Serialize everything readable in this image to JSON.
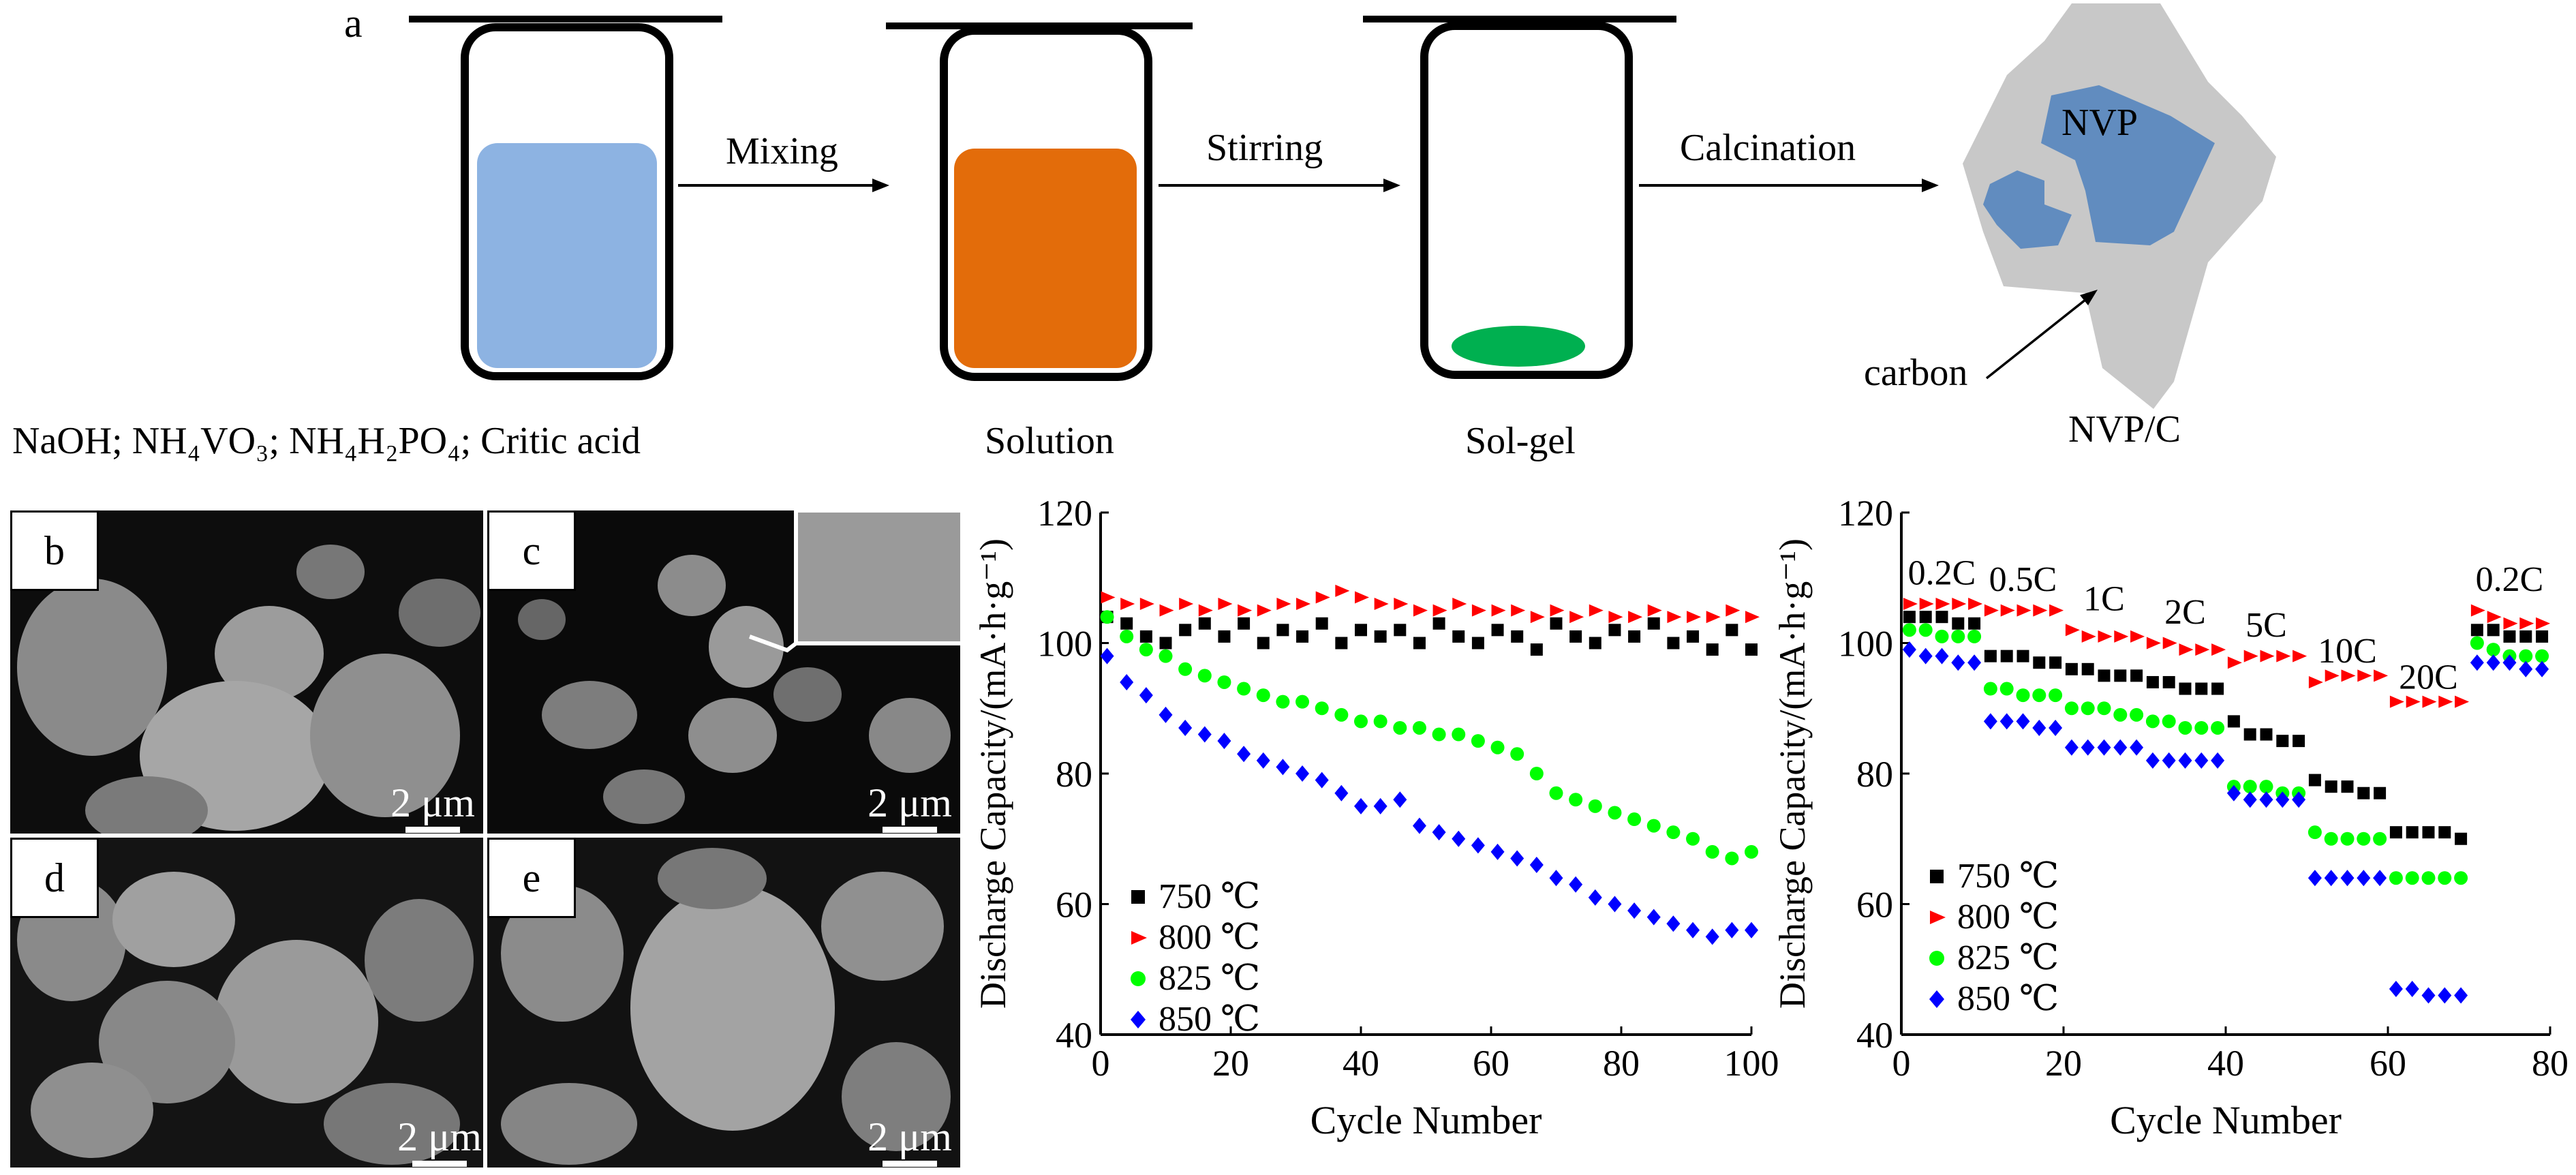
{
  "schematic": {
    "panel_label": "a",
    "steps": [
      "Mixing",
      "Stirring",
      "Calcination"
    ],
    "captions": [
      "NaOH; NH₄VO₃; NH₄H₂PO₄; Critic acid",
      "Solution",
      "Sol-gel",
      "NVP/C"
    ],
    "nvp_label": "NVP",
    "carbon_label": "carbon",
    "colors": {
      "reagent": "#8db3e2",
      "solution": "#e36c0a",
      "gel": "#00b050",
      "nvp": "#4f81bd",
      "carbon": "#c8c8c8"
    }
  },
  "sem": {
    "panels": [
      {
        "label": "b",
        "scale": "2 μm"
      },
      {
        "label": "c",
        "scale": "2 μm"
      },
      {
        "label": "d",
        "scale": "2 μm"
      },
      {
        "label": "e",
        "scale": "2 μm"
      }
    ]
  },
  "chart_data": [
    {
      "type": "scatter",
      "title": "",
      "xlabel": "Cycle Number",
      "ylabel": "Discharge Capacity/(mA·h·g⁻¹)",
      "xlim": [
        0,
        100
      ],
      "ylim": [
        40,
        120
      ],
      "xticks": [
        0,
        20,
        40,
        60,
        80,
        100
      ],
      "yticks": [
        40,
        60,
        80,
        100,
        120
      ],
      "grid": false,
      "legend_position": "bottom-left",
      "series": [
        {
          "name": "750 ℃",
          "color": "#000000",
          "marker": "square",
          "x": [
            1,
            4,
            7,
            10,
            13,
            16,
            19,
            22,
            25,
            28,
            31,
            34,
            37,
            40,
            43,
            46,
            49,
            52,
            55,
            58,
            61,
            64,
            67,
            70,
            73,
            76,
            79,
            82,
            85,
            88,
            91,
            94,
            97,
            100
          ],
          "y": [
            104,
            103,
            101,
            100,
            102,
            103,
            101,
            103,
            100,
            102,
            101,
            103,
            100,
            102,
            101,
            102,
            100,
            103,
            101,
            100,
            102,
            101,
            99,
            103,
            101,
            100,
            102,
            101,
            103,
            100,
            101,
            99,
            102,
            99
          ]
        },
        {
          "name": "800 ℃",
          "color": "#ff0000",
          "marker": "triangle-right",
          "x": [
            1,
            4,
            7,
            10,
            13,
            16,
            19,
            22,
            25,
            28,
            31,
            34,
            37,
            40,
            43,
            46,
            49,
            52,
            55,
            58,
            61,
            64,
            67,
            70,
            73,
            76,
            79,
            82,
            85,
            88,
            91,
            94,
            97,
            100
          ],
          "y": [
            107,
            106,
            106,
            105,
            106,
            105,
            106,
            105,
            105,
            106,
            106,
            107,
            108,
            107,
            106,
            106,
            105,
            105,
            106,
            105,
            105,
            105,
            104,
            105,
            104,
            105,
            104,
            104,
            105,
            104,
            104,
            104,
            105,
            104
          ]
        },
        {
          "name": "825 ℃",
          "color": "#00ff00",
          "marker": "circle",
          "x": [
            1,
            4,
            7,
            10,
            13,
            16,
            19,
            22,
            25,
            28,
            31,
            34,
            37,
            40,
            43,
            46,
            49,
            52,
            55,
            58,
            61,
            64,
            67,
            70,
            73,
            76,
            79,
            82,
            85,
            88,
            91,
            94,
            97,
            100
          ],
          "y": [
            104,
            101,
            99,
            98,
            96,
            95,
            94,
            93,
            92,
            91,
            91,
            90,
            89,
            88,
            88,
            87,
            87,
            86,
            86,
            85,
            84,
            83,
            80,
            77,
            76,
            75,
            74,
            73,
            72,
            71,
            70,
            68,
            67,
            68
          ]
        },
        {
          "name": "850 ℃",
          "color": "#0000ff",
          "marker": "diamond",
          "x": [
            1,
            4,
            7,
            10,
            13,
            16,
            19,
            22,
            25,
            28,
            31,
            34,
            37,
            40,
            43,
            46,
            49,
            52,
            55,
            58,
            61,
            64,
            67,
            70,
            73,
            76,
            79,
            82,
            85,
            88,
            91,
            94,
            97,
            100
          ],
          "y": [
            98,
            94,
            92,
            89,
            87,
            86,
            85,
            83,
            82,
            81,
            80,
            79,
            77,
            75,
            75,
            76,
            72,
            71,
            70,
            69,
            68,
            67,
            66,
            64,
            63,
            61,
            60,
            59,
            58,
            57,
            56,
            55,
            56,
            56
          ]
        }
      ]
    },
    {
      "type": "scatter",
      "title": "",
      "xlabel": "Cycle Number",
      "ylabel": "Discharge Capacity/(mA·h·g⁻¹)",
      "xlim": [
        0,
        80
      ],
      "ylim": [
        40,
        120
      ],
      "xticks": [
        0,
        20,
        40,
        60,
        80
      ],
      "yticks": [
        40,
        60,
        80,
        100,
        120
      ],
      "grid": false,
      "legend_position": "bottom-left",
      "rate_labels": [
        {
          "text": "0.2C",
          "x": 5,
          "y": 109
        },
        {
          "text": "0.5C",
          "x": 15,
          "y": 108
        },
        {
          "text": "1C",
          "x": 25,
          "y": 105
        },
        {
          "text": "2C",
          "x": 35,
          "y": 103
        },
        {
          "text": "5C",
          "x": 45,
          "y": 101
        },
        {
          "text": "10C",
          "x": 55,
          "y": 97
        },
        {
          "text": "20C",
          "x": 65,
          "y": 93
        },
        {
          "text": "0.2C",
          "x": 75,
          "y": 108
        }
      ],
      "series": [
        {
          "name": "750 ℃",
          "color": "#000000",
          "marker": "square",
          "x": [
            1,
            3,
            5,
            7,
            9,
            11,
            13,
            15,
            17,
            19,
            21,
            23,
            25,
            27,
            29,
            31,
            33,
            35,
            37,
            39,
            41,
            43,
            45,
            47,
            49,
            51,
            53,
            55,
            57,
            59,
            61,
            63,
            65,
            67,
            69,
            71,
            73,
            75,
            77,
            79
          ],
          "y": [
            104,
            104,
            104,
            103,
            103,
            98,
            98,
            98,
            97,
            97,
            96,
            96,
            95,
            95,
            95,
            94,
            94,
            93,
            93,
            93,
            88,
            86,
            86,
            85,
            85,
            79,
            78,
            78,
            77,
            77,
            71,
            71,
            71,
            71,
            70,
            102,
            102,
            101,
            101,
            101
          ]
        },
        {
          "name": "800 ℃",
          "color": "#ff0000",
          "marker": "triangle-right",
          "x": [
            1,
            3,
            5,
            7,
            9,
            11,
            13,
            15,
            17,
            19,
            21,
            23,
            25,
            27,
            29,
            31,
            33,
            35,
            37,
            39,
            41,
            43,
            45,
            47,
            49,
            51,
            53,
            55,
            57,
            59,
            61,
            63,
            65,
            67,
            69,
            71,
            73,
            75,
            77,
            79
          ],
          "y": [
            106,
            106,
            106,
            106,
            106,
            105,
            105,
            105,
            105,
            105,
            102,
            101,
            101,
            101,
            101,
            100,
            100,
            99,
            99,
            99,
            97,
            98,
            98,
            98,
            98,
            94,
            95,
            95,
            95,
            95,
            91,
            91,
            91,
            91,
            91,
            105,
            104,
            103,
            103,
            103
          ]
        },
        {
          "name": "825 ℃",
          "color": "#00ff00",
          "marker": "circle",
          "x": [
            1,
            3,
            5,
            7,
            9,
            11,
            13,
            15,
            17,
            19,
            21,
            23,
            25,
            27,
            29,
            31,
            33,
            35,
            37,
            39,
            41,
            43,
            45,
            47,
            49,
            51,
            53,
            55,
            57,
            59,
            61,
            63,
            65,
            67,
            69,
            71,
            73,
            75,
            77,
            79
          ],
          "y": [
            102,
            102,
            101,
            101,
            101,
            93,
            93,
            92,
            92,
            92,
            90,
            90,
            90,
            89,
            89,
            88,
            88,
            87,
            87,
            87,
            78,
            78,
            78,
            77,
            77,
            71,
            70,
            70,
            70,
            70,
            64,
            64,
            64,
            64,
            64,
            100,
            99,
            98,
            98,
            98
          ]
        },
        {
          "name": "850 ℃",
          "color": "#0000ff",
          "marker": "diamond",
          "x": [
            1,
            3,
            5,
            7,
            9,
            11,
            13,
            15,
            17,
            19,
            21,
            23,
            25,
            27,
            29,
            31,
            33,
            35,
            37,
            39,
            41,
            43,
            45,
            47,
            49,
            51,
            53,
            55,
            57,
            59,
            61,
            63,
            65,
            67,
            69,
            71,
            73,
            75,
            77,
            79
          ],
          "y": [
            99,
            98,
            98,
            97,
            97,
            88,
            88,
            88,
            87,
            87,
            84,
            84,
            84,
            84,
            84,
            82,
            82,
            82,
            82,
            82,
            77,
            76,
            76,
            76,
            76,
            64,
            64,
            64,
            64,
            64,
            47,
            47,
            46,
            46,
            46,
            97,
            97,
            97,
            96,
            96
          ]
        }
      ]
    }
  ]
}
